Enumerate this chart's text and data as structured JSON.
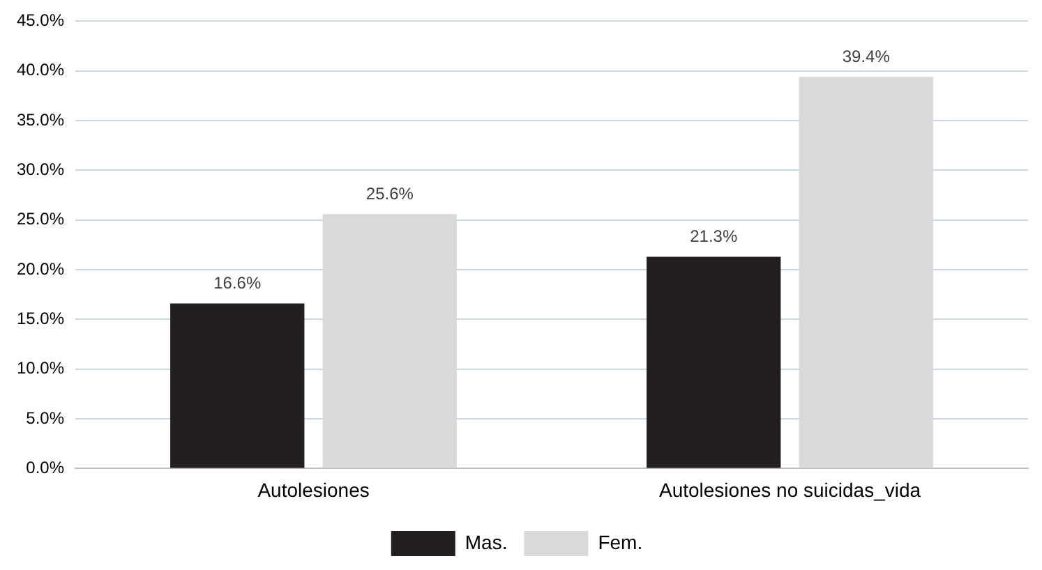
{
  "chart_data": {
    "type": "bar",
    "categories": [
      "Autolesiones",
      "Autolesiones no suicidas_vida"
    ],
    "series": [
      {
        "name": "Mas.",
        "color": "#231f20",
        "values": [
          16.6,
          21.3
        ],
        "value_labels": [
          "16.6%",
          "21.3%"
        ]
      },
      {
        "name": "Fem.",
        "color": "#d9d9d9",
        "values": [
          25.6,
          39.4
        ],
        "value_labels": [
          "25.6%",
          "39.4%"
        ]
      }
    ],
    "ylim": [
      0,
      45
    ],
    "yticks": [
      {
        "value": 0,
        "label": "0.0%"
      },
      {
        "value": 5,
        "label": "5.0%"
      },
      {
        "value": 10,
        "label": "10.0%"
      },
      {
        "value": 15,
        "label": "15.0%"
      },
      {
        "value": 20,
        "label": "20.0%"
      },
      {
        "value": 25,
        "label": "25.0%"
      },
      {
        "value": 30,
        "label": "30.0%"
      },
      {
        "value": 35,
        "label": "35.0%"
      },
      {
        "value": 40,
        "label": "40.0%"
      },
      {
        "value": 45,
        "label": "45.0%"
      }
    ],
    "grid": "y",
    "legend": "bottom"
  }
}
